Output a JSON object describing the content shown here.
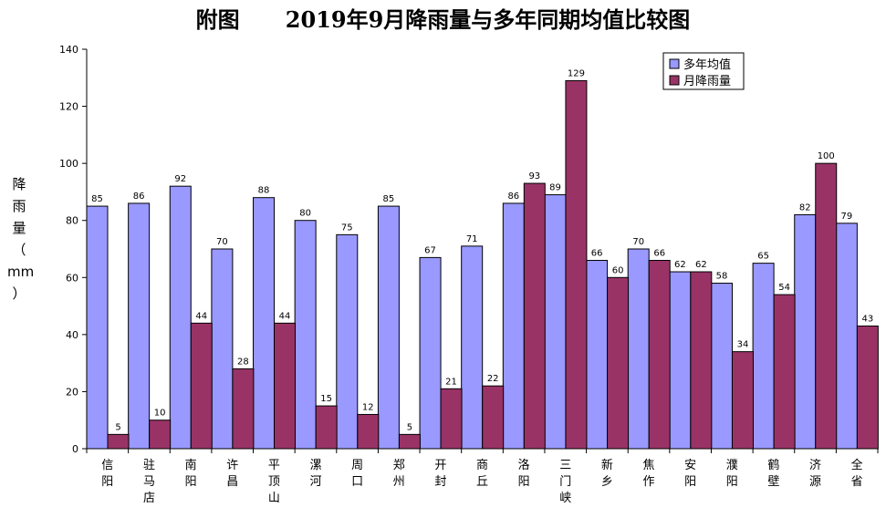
{
  "chart_data": {
    "type": "bar",
    "title": "附图      2019年9月降雨量与多年同期均值比较图",
    "ylabel": "降雨量（mm）",
    "ylim": [
      0,
      140
    ],
    "yticks": [
      0,
      20,
      40,
      60,
      80,
      100,
      120,
      140
    ],
    "categories": [
      "信阳",
      "驻马店",
      "南阳",
      "许昌",
      "平顶山",
      "漯河",
      "周口",
      "郑州",
      "开封",
      "商丘",
      "洛阳",
      "三门峡",
      "新乡",
      "焦作",
      "安阳",
      "濮阳",
      "鹤壁",
      "济源",
      "全省"
    ],
    "series": [
      {
        "name": "多年均值",
        "color": "#9999ff",
        "values": [
          85,
          86,
          92,
          70,
          88,
          80,
          75,
          85,
          67,
          71,
          86,
          89,
          66,
          70,
          62,
          58,
          65,
          82,
          79
        ]
      },
      {
        "name": "月降雨量",
        "color": "#993366",
        "values": [
          5,
          10,
          44,
          28,
          44,
          15,
          12,
          5,
          21,
          22,
          93,
          129,
          60,
          66,
          62,
          34,
          54,
          100,
          43
        ]
      }
    ],
    "legend_position": "top-right",
    "grid": false
  }
}
